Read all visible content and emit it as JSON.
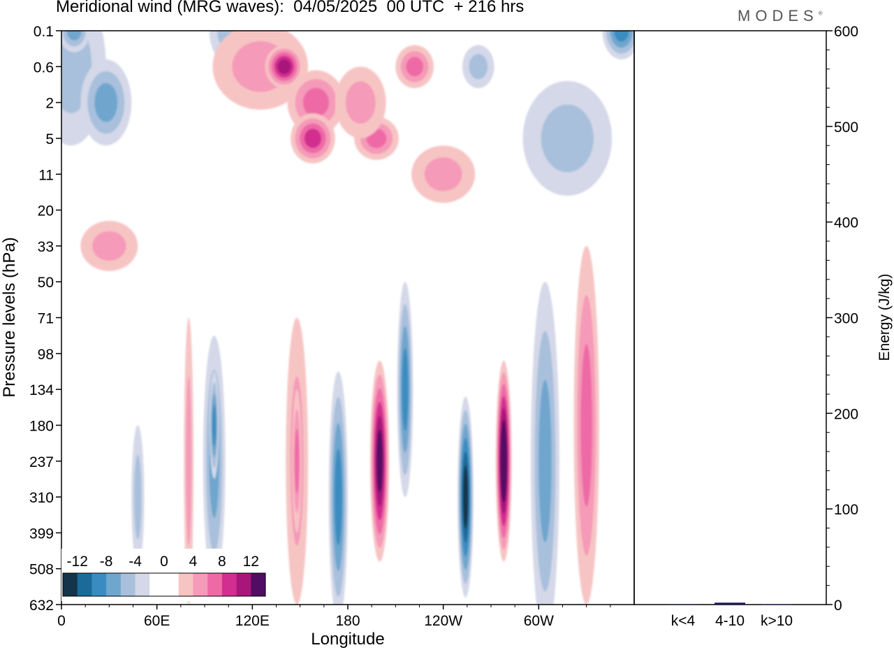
{
  "title": "Meridional wind (MRG waves):  04/05/2025  00 UTC  + 216 hrs",
  "logo": "MODES",
  "chart_data": [
    {
      "type": "heatmap",
      "xlabel": "Longitude",
      "ylabel": "Pressure levels (hPa)",
      "x_tick_labels": [
        "0",
        "60E",
        "120E",
        "180",
        "120W",
        "60W"
      ],
      "y_tick_labels": [
        "0.1",
        "0.6",
        "2",
        "5",
        "11",
        "20",
        "33",
        "50",
        "71",
        "98",
        "134",
        "180",
        "237",
        "310",
        "399",
        "508",
        "632"
      ],
      "colorbar": {
        "labels": [
          "-12",
          "-8",
          "-4",
          "0",
          "4",
          "8",
          "12"
        ],
        "bounds": [
          -14,
          -12,
          -10,
          -8,
          -6,
          -4,
          -2,
          0,
          2,
          4,
          6,
          8,
          10,
          12,
          14
        ],
        "colors": [
          "#13344a",
          "#1a6a9a",
          "#3a8cc0",
          "#6fa6ce",
          "#a8c0dc",
          "#d4d8e8",
          "#ffffff",
          "#ffffff",
          "#f7c4c4",
          "#f59ab8",
          "#ee6aa6",
          "#d22d90",
          "#a8167a",
          "#520d63"
        ]
      },
      "contours": [
        {
          "value": -4,
          "lon": 6,
          "level": "0.6",
          "dlon": 22,
          "dlev": 2.2
        },
        {
          "value": -6,
          "lon": 28,
          "level": "2",
          "dlon": 16,
          "dlev": 1.2
        },
        {
          "value": -4,
          "lon": 105,
          "level": "0.1",
          "dlon": 12,
          "dlev": 0.9
        },
        {
          "value": -6,
          "lon": 8,
          "level": "0.1",
          "dlon": 10,
          "dlev": 0.6
        },
        {
          "value": 4,
          "lon": 125,
          "level": "0.6",
          "dlon": 30,
          "dlev": 1.2
        },
        {
          "value": 10,
          "lon": 140,
          "level": "0.6",
          "dlon": 12,
          "dlev": 0.6
        },
        {
          "value": 6,
          "lon": 222,
          "level": "0.6",
          "dlon": 12,
          "dlev": 0.6
        },
        {
          "value": 6,
          "lon": 160,
          "level": "2",
          "dlon": 18,
          "dlev": 0.9
        },
        {
          "value": 8,
          "lon": 158,
          "level": "5",
          "dlon": 14,
          "dlev": 0.7
        },
        {
          "value": 6,
          "lon": 198,
          "level": "5",
          "dlon": 14,
          "dlev": 0.6
        },
        {
          "value": 4,
          "lon": 188,
          "level": "2",
          "dlon": 16,
          "dlev": 1.0
        },
        {
          "value": -4,
          "lon": 262,
          "level": "0.6",
          "dlon": 10,
          "dlev": 0.6
        },
        {
          "value": -8,
          "lon": 352,
          "level": "0.1",
          "dlon": 12,
          "dlev": 0.8
        },
        {
          "value": -4,
          "lon": 318,
          "level": "5",
          "dlon": 28,
          "dlev": 1.6
        },
        {
          "value": 4,
          "lon": 240,
          "level": "11",
          "dlon": 20,
          "dlev": 0.8
        },
        {
          "value": 4,
          "lon": 30,
          "level": "33",
          "dlon": 18,
          "dlev": 0.7
        },
        {
          "value": 4,
          "lon": 80,
          "level": "237",
          "dlon": 3,
          "dlev": 4.0
        },
        {
          "value": -6,
          "lon": 96,
          "level": "237",
          "dlon": 7,
          "dlev": 3.5
        },
        {
          "value": -8,
          "lon": 96,
          "level": "180",
          "dlon": 3,
          "dlev": 1.5
        },
        {
          "value": -4,
          "lon": 48,
          "level": "310",
          "dlon": 4,
          "dlev": 2.0
        },
        {
          "value": 4,
          "lon": 148,
          "level": "237",
          "dlon": 7,
          "dlev": 4.0
        },
        {
          "value": 6,
          "lon": 148,
          "level": "237",
          "dlon": 3,
          "dlev": 2.0
        },
        {
          "value": -8,
          "lon": 174,
          "level": "310",
          "dlon": 6,
          "dlev": 3.5
        },
        {
          "value": 12,
          "lon": 200,
          "level": "237",
          "dlon": 6,
          "dlev": 2.8
        },
        {
          "value": -8,
          "lon": 216,
          "level": "134",
          "dlon": 5,
          "dlev": 3.0
        },
        {
          "value": -12,
          "lon": 254,
          "level": "310",
          "dlon": 5,
          "dlev": 2.8
        },
        {
          "value": 14,
          "lon": 278,
          "level": "237",
          "dlon": 5,
          "dlev": 2.8
        },
        {
          "value": -6,
          "lon": 304,
          "level": "237",
          "dlon": 9,
          "dlev": 5.0
        },
        {
          "value": 6,
          "lon": 330,
          "level": "180",
          "dlon": 8,
          "dlev": 5.0
        }
      ]
    },
    {
      "type": "bar",
      "categories": [
        "k<4",
        "4-10",
        "k>10"
      ],
      "values": [
        0.5,
        2,
        0.3
      ],
      "ylabel": "Energy (J/kg)",
      "ylim": [
        0,
        600
      ],
      "y_ticks": [
        0,
        100,
        200,
        300,
        400,
        500,
        600
      ],
      "bar_color": "#1a1a5a"
    }
  ]
}
